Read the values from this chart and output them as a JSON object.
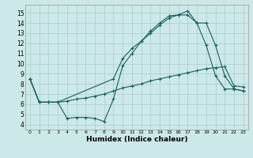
{
  "xlabel": "Humidex (Indice chaleur)",
  "background_color": "#cce8e8",
  "grid_color": "#aacccc",
  "line_color": "#1a5f5a",
  "xlim": [
    -0.5,
    23.5
  ],
  "ylim": [
    3.5,
    15.8
  ],
  "xticks": [
    0,
    1,
    2,
    3,
    4,
    5,
    6,
    7,
    8,
    9,
    10,
    11,
    12,
    13,
    14,
    15,
    16,
    17,
    18,
    19,
    20,
    21,
    22,
    23
  ],
  "yticks": [
    4,
    5,
    6,
    7,
    8,
    9,
    10,
    11,
    12,
    13,
    14,
    15
  ],
  "line1_x": [
    0,
    1,
    2,
    3,
    4,
    5,
    6,
    7,
    8,
    9,
    10,
    11,
    12,
    13,
    14,
    15,
    16,
    17,
    18,
    19,
    20,
    21,
    22,
    23
  ],
  "line1_y": [
    8.5,
    6.2,
    6.2,
    6.2,
    4.6,
    4.7,
    4.7,
    4.6,
    4.3,
    6.5,
    9.8,
    11.0,
    12.2,
    13.2,
    14.0,
    14.7,
    14.8,
    14.8,
    14.0,
    11.8,
    8.8,
    7.5,
    7.5,
    7.3
  ],
  "line2_x": [
    0,
    1,
    2,
    3,
    9,
    10,
    11,
    12,
    13,
    14,
    15,
    16,
    17,
    18,
    19,
    20,
    21,
    22,
    23
  ],
  "line2_y": [
    8.5,
    6.2,
    6.2,
    6.2,
    8.5,
    10.5,
    11.5,
    12.2,
    13.0,
    13.8,
    14.5,
    14.8,
    15.2,
    14.0,
    14.0,
    11.8,
    8.8,
    7.5,
    7.3
  ],
  "line3_x": [
    0,
    1,
    2,
    3,
    4,
    5,
    6,
    7,
    8,
    9,
    10,
    11,
    12,
    13,
    14,
    15,
    16,
    17,
    18,
    19,
    20,
    21,
    22,
    23
  ],
  "line3_y": [
    8.5,
    6.2,
    6.2,
    6.2,
    6.3,
    6.5,
    6.6,
    6.8,
    7.0,
    7.3,
    7.6,
    7.8,
    8.0,
    8.3,
    8.5,
    8.7,
    8.9,
    9.1,
    9.3,
    9.5,
    9.6,
    9.7,
    7.8,
    7.7
  ]
}
